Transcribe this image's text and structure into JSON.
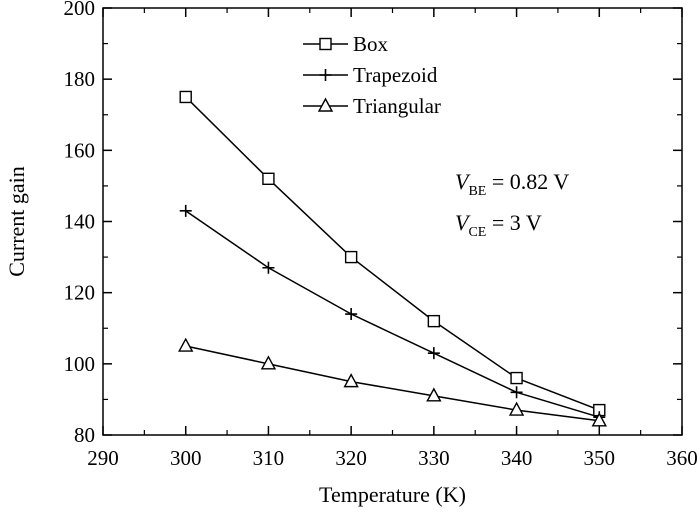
{
  "chart_data": {
    "type": "line",
    "xlabel": "Temperature (K)",
    "ylabel": "Current gain",
    "xlim": [
      290,
      360
    ],
    "ylim": [
      80,
      200
    ],
    "xticks": [
      290,
      300,
      310,
      320,
      330,
      340,
      350,
      360
    ],
    "yticks": [
      80,
      100,
      120,
      140,
      160,
      180,
      200
    ],
    "grid": false,
    "legend": "top-center",
    "x": [
      300,
      310,
      320,
      330,
      340,
      350
    ],
    "series": [
      {
        "name": "Box",
        "marker": "square",
        "values": [
          175,
          152,
          130,
          112,
          96,
          87
        ]
      },
      {
        "name": "Trapezoid",
        "marker": "plus",
        "values": [
          143,
          127,
          114,
          103,
          92,
          85
        ]
      },
      {
        "name": "Triangular",
        "marker": "triangle",
        "values": [
          105,
          100,
          95,
          91,
          87,
          84
        ]
      }
    ],
    "annotations": [
      {
        "symbol": "V",
        "subscript": "BE",
        "text": " = 0.82 V"
      },
      {
        "symbol": "V",
        "subscript": "CE",
        "text": " = 3 V"
      }
    ],
    "colors": {
      "line": "#000000",
      "background": "#ffffff"
    }
  }
}
